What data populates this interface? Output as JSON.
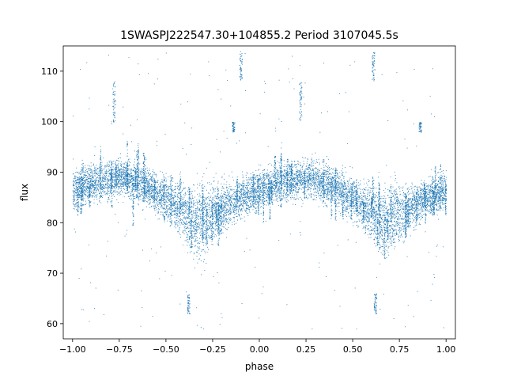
{
  "chart_data": {
    "type": "scatter",
    "title": "1SWASPJ222547.30+104855.2 Period 3107045.5s",
    "xlabel": "phase",
    "ylabel": "flux",
    "xlim": [
      -1.05,
      1.05
    ],
    "ylim": [
      57,
      115
    ],
    "x_ticks": [
      -1.0,
      -0.75,
      -0.5,
      -0.25,
      0.0,
      0.25,
      0.5,
      0.75,
      1.0
    ],
    "x_tick_labels": [
      "−1.00",
      "−0.75",
      "−0.50",
      "−0.25",
      "0.00",
      "0.25",
      "0.50",
      "0.75",
      "1.00"
    ],
    "y_ticks": [
      60,
      70,
      80,
      90,
      100,
      110
    ],
    "y_tick_labels": [
      "60",
      "70",
      "80",
      "90",
      "100",
      "110"
    ],
    "grid": false,
    "marker_color": "#1f77b4",
    "phase_range": [
      -1.0,
      1.0
    ],
    "series": [
      {
        "trend": {
          "phase": [
            0.0,
            0.1,
            0.2,
            0.25,
            0.3,
            0.4,
            0.5,
            0.6,
            0.65,
            0.7,
            0.8,
            0.9,
            1.0
          ],
          "flux": [
            86.5,
            88,
            88.5,
            89,
            88.5,
            87,
            85,
            82,
            80,
            81,
            83,
            85,
            86.5
          ]
        },
        "clumps": [
          {
            "phase": -0.78,
            "flux_range": [
              100,
              108
            ]
          },
          {
            "phase": 0.22,
            "flux_range": [
              100,
              108
            ]
          },
          {
            "phase": -0.38,
            "flux_range": [
              62,
              66
            ]
          },
          {
            "phase": 0.62,
            "flux_range": [
              62,
              66
            ]
          },
          {
            "phase": -0.14,
            "flux_range": [
              98,
              100
            ]
          },
          {
            "phase": 0.86,
            "flux_range": [
              98,
              100
            ]
          },
          {
            "phase": -0.1,
            "flux_range": [
              108,
              114
            ]
          },
          {
            "phase": 0.61,
            "flux_range": [
              108,
              114
            ]
          }
        ]
      }
    ]
  }
}
